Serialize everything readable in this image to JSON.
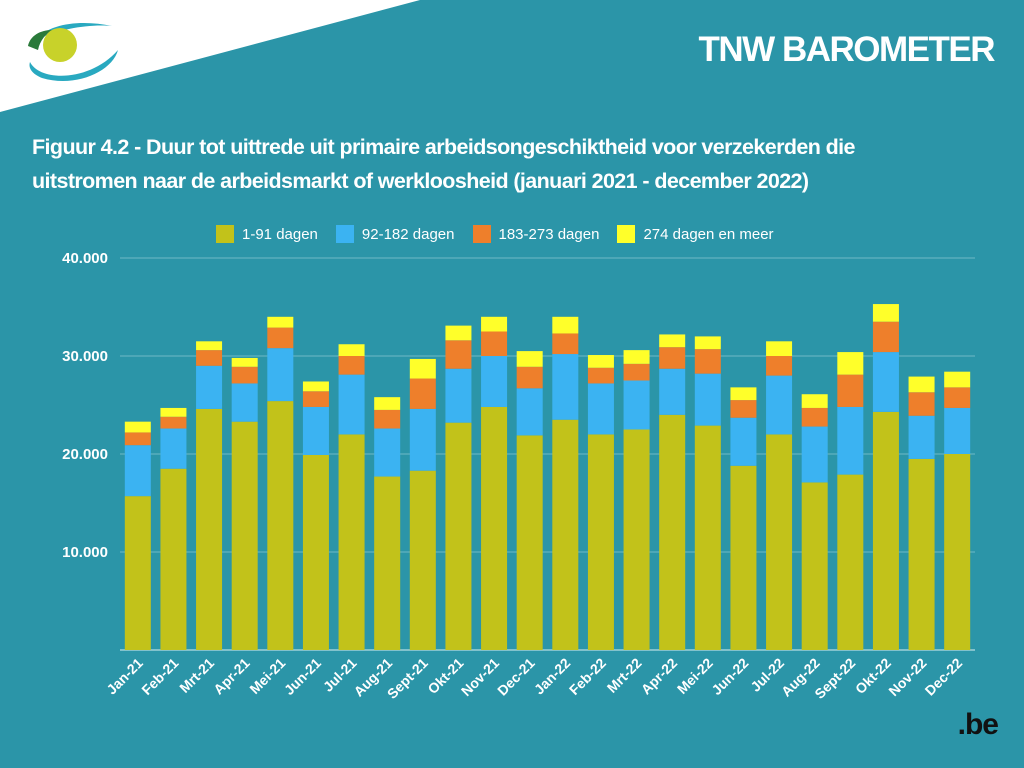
{
  "header": {
    "brand": "TNW BAROMETER"
  },
  "title_lines": [
    "Figuur 4.2 - Duur tot uittrede uit primaire arbeidsongeschiktheid voor verzekerden die",
    "uitstromen naar de arbeidsmarkt of werkloosheid (januari 2021 - december 2022)"
  ],
  "footer_logo": ".be",
  "chart_data": {
    "type": "bar",
    "stacked": true,
    "title": "Figuur 4.2 - Duur tot uittrede uit primaire arbeidsongeschiktheid voor verzekerden die uitstromen naar de arbeidsmarkt of werkloosheid (januari 2021 - december 2022)",
    "xlabel": "",
    "ylabel": "",
    "ylim": [
      0,
      40000
    ],
    "yticks": [
      10000,
      20000,
      30000,
      40000
    ],
    "ytick_labels": [
      "10.000",
      "20.000",
      "30.000",
      "40.000"
    ],
    "grid": true,
    "legend_position": "top",
    "categories": [
      "Jan-21",
      "Feb-21",
      "Mrt-21",
      "Apr-21",
      "Mei-21",
      "Jun-21",
      "Jul-21",
      "Aug-21",
      "Sept-21",
      "Okt-21",
      "Nov-21",
      "Dec-21",
      "Jan-22",
      "Feb-22",
      "Mrt-22",
      "Apr-22",
      "Mei-22",
      "Jun-22",
      "Jul-22",
      "Aug-22",
      "Sept-22",
      "Okt-22",
      "Nov-22",
      "Dec-22"
    ],
    "series": [
      {
        "name": "1-91 dagen",
        "color": "#c2c21a",
        "values": [
          15700,
          18500,
          24600,
          23300,
          25400,
          19900,
          22000,
          17700,
          18300,
          23200,
          24800,
          21900,
          23500,
          22000,
          22500,
          24000,
          22900,
          18800,
          22000,
          17100,
          17900,
          24300,
          19500,
          20000
        ]
      },
      {
        "name": "92-182 dagen",
        "color": "#3bb3f2",
        "values": [
          5200,
          4100,
          4400,
          3900,
          5400,
          4900,
          6100,
          4900,
          6300,
          5500,
          5200,
          4800,
          6700,
          5200,
          5000,
          4700,
          5300,
          4900,
          6000,
          5700,
          6900,
          6100,
          4400,
          4700
        ]
      },
      {
        "name": "183-273 dagen",
        "color": "#ee7f2b",
        "values": [
          1300,
          1200,
          1600,
          1700,
          2100,
          1600,
          1900,
          1900,
          3100,
          2900,
          2500,
          2200,
          2100,
          1600,
          1700,
          2200,
          2500,
          1800,
          2000,
          1900,
          3300,
          3100,
          2400,
          2100
        ]
      },
      {
        "name": "274 dagen en meer",
        "color": "#ffff2a",
        "values": [
          1100,
          900,
          900,
          900,
          1100,
          1000,
          1200,
          1300,
          2000,
          1500,
          1500,
          1600,
          1700,
          1300,
          1400,
          1300,
          1300,
          1300,
          1500,
          1400,
          2300,
          1800,
          1600,
          1600
        ]
      }
    ]
  }
}
